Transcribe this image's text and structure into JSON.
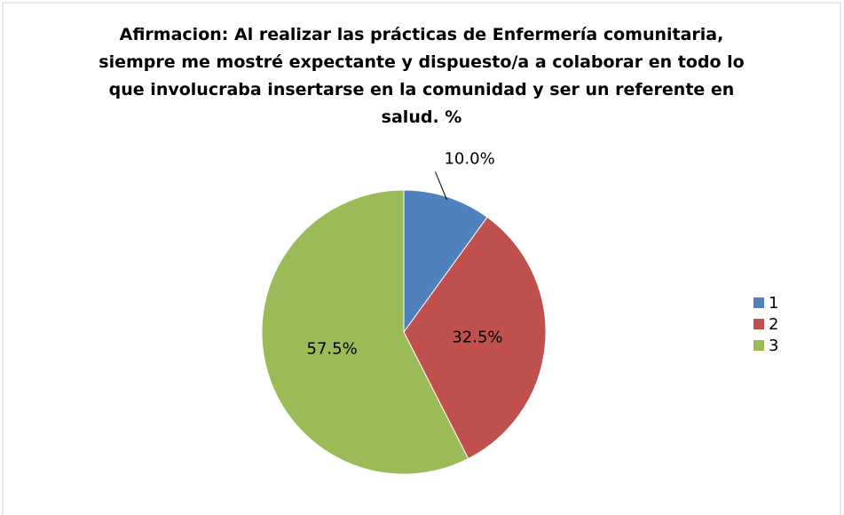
{
  "chart_data": {
    "type": "pie",
    "title": "Afirmacion: Al realizar las prácticas de Enfermería comunitaria, siempre me mostré expectante y dispuesto/a a colaborar en todo lo que involucraba insertarse en la comunidad y ser un referente en salud. %",
    "categories": [
      "1",
      "2",
      "3"
    ],
    "values": [
      10,
      32.5,
      57.5
    ],
    "value_labels": [
      "10.0%",
      "32.5%",
      "57.5%"
    ],
    "colors": [
      "#4f81bd",
      "#c0504d",
      "#9bbb59"
    ],
    "legend": "right"
  }
}
